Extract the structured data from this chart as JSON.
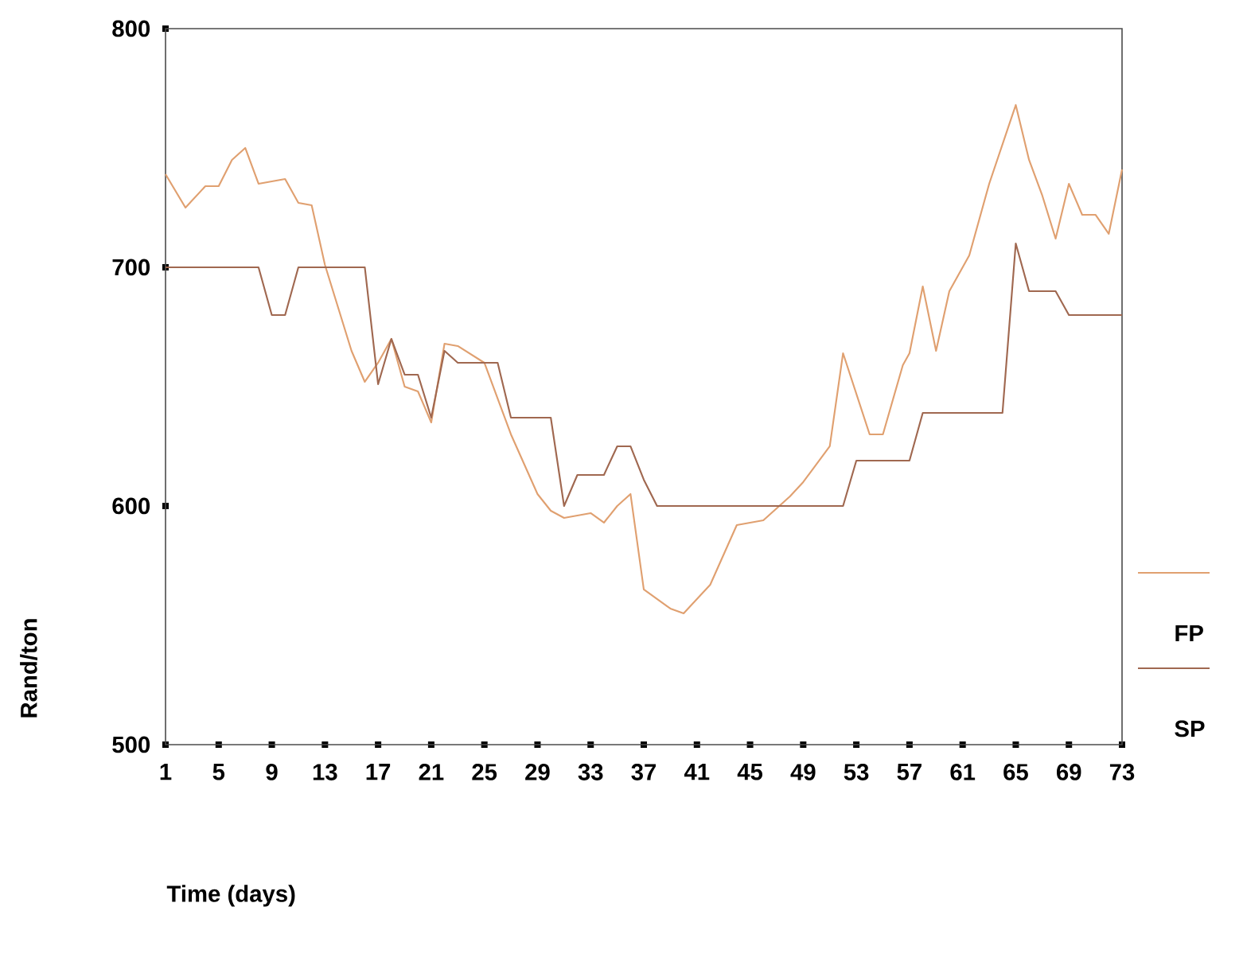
{
  "chart_data": {
    "type": "line",
    "xlabel": "Time (days)",
    "ylabel": "Rand/ton",
    "xlim": [
      1,
      73
    ],
    "ylim": [
      500,
      800
    ],
    "xticks": [
      1,
      5,
      9,
      13,
      17,
      21,
      25,
      29,
      33,
      37,
      41,
      45,
      49,
      53,
      57,
      61,
      65,
      69,
      73
    ],
    "yticks": [
      500,
      600,
      700,
      800
    ],
    "legend": "right",
    "grid": false,
    "marker": "none",
    "line_style": "solid",
    "series": [
      {
        "name": "FP",
        "color": "#e0a070",
        "x": [
          1,
          2.5,
          4,
          5,
          6,
          7,
          8,
          10,
          11,
          12,
          13,
          15,
          16,
          17,
          18,
          19,
          20,
          21,
          22,
          23,
          25,
          27,
          29,
          30,
          31,
          33,
          34,
          35,
          36,
          37,
          39,
          40,
          42,
          44,
          46,
          48,
          49,
          51,
          52,
          54,
          55,
          56.5,
          57,
          58,
          59,
          60,
          61.5,
          63,
          65,
          66,
          67,
          68,
          69,
          70,
          71,
          72,
          73
        ],
        "values": [
          739,
          725,
          734,
          734,
          745,
          750,
          735,
          737,
          727,
          726,
          701,
          665,
          652,
          660,
          670,
          650,
          648,
          635,
          668,
          667,
          660,
          630,
          605,
          598,
          595,
          597,
          593,
          600,
          605,
          565,
          557,
          555,
          567,
          592,
          594,
          604,
          610,
          625,
          664,
          630,
          630,
          659,
          664,
          692,
          665,
          690,
          705,
          735,
          768,
          745,
          730,
          712,
          735,
          722,
          722,
          714,
          741
        ]
      },
      {
        "name": "SP",
        "color": "#a06850",
        "x": [
          1,
          8,
          9,
          10,
          11,
          16,
          17,
          18,
          19,
          20,
          21,
          22,
          23,
          26,
          27,
          30,
          31,
          32,
          34,
          35,
          36,
          37,
          38,
          52,
          53,
          57,
          58,
          64,
          65,
          66,
          68,
          69,
          73
        ],
        "values": [
          700,
          700,
          680,
          680,
          700,
          700,
          651,
          670,
          655,
          655,
          637,
          665,
          660,
          660,
          637,
          637,
          600,
          613,
          613,
          625,
          625,
          611,
          600,
          600,
          619,
          619,
          639,
          639,
          710,
          690,
          690,
          680,
          680
        ]
      }
    ]
  }
}
